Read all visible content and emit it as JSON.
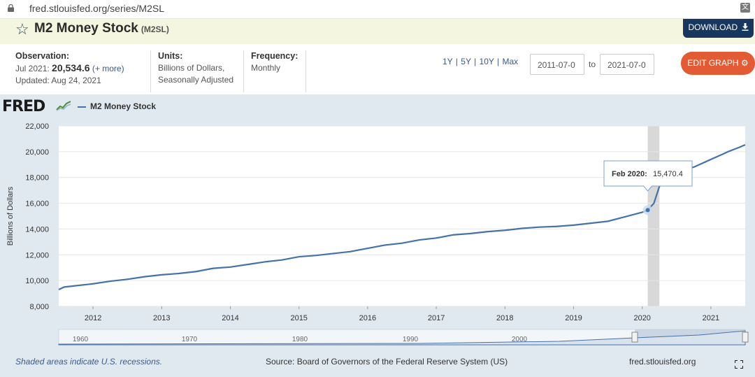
{
  "browser": {
    "url": "fred.stlouisfed.org/series/M2SL"
  },
  "header": {
    "title": "M2 Money Stock",
    "series_id": "(M2SL)",
    "download_label": "DOWNLOAD"
  },
  "observation": {
    "label": "Observation:",
    "period": "Jul 2021:",
    "value": "20,534.6",
    "more": "(+ more)",
    "updated": "Updated: Aug 24, 2021"
  },
  "units": {
    "label": "Units:",
    "line1": "Billions of Dollars,",
    "line2": "Seasonally Adjusted"
  },
  "frequency": {
    "label": "Frequency:",
    "value": "Monthly"
  },
  "ranges": [
    "1Y",
    "5Y",
    "10Y",
    "Max"
  ],
  "date_from": "2011-07-0",
  "date_to": "2021-07-0",
  "to_label": "to",
  "edit_label": "EDIT GRAPH",
  "logo": "FRED",
  "legend_label": "M2 Money Stock",
  "footer": {
    "recessions": "Shaded areas indicate U.S. recessions.",
    "source": "Source: Board of Governors of the Federal Reserve System (US)",
    "site": "fred.stlouisfed.org"
  },
  "colors": {
    "series": "#4572a7",
    "recession": "#d8d8d8",
    "edit": "#e35b34",
    "download": "#17375e"
  },
  "chart_data": {
    "type": "line",
    "ylabel": "Billions of Dollars",
    "ylim": [
      8000,
      22000
    ],
    "yticks": [
      "8,000",
      "10,000",
      "12,000",
      "14,000",
      "16,000",
      "18,000",
      "20,000",
      "22,000"
    ],
    "xlim": [
      2011.5,
      2021.5
    ],
    "xticks": [
      "2012",
      "2013",
      "2014",
      "2015",
      "2016",
      "2017",
      "2018",
      "2019",
      "2020",
      "2021"
    ],
    "recession": [
      2020.08,
      2020.25
    ],
    "tooltip": {
      "label": "Feb 2020:",
      "value": "15,470.4",
      "x": 2020.08,
      "y": 15470.4
    },
    "series": [
      {
        "name": "M2 Money Stock",
        "x": [
          2011.5,
          2011.58,
          2011.75,
          2012.0,
          2012.25,
          2012.5,
          2012.75,
          2013.0,
          2013.25,
          2013.5,
          2013.75,
          2014.0,
          2014.25,
          2014.5,
          2014.75,
          2015.0,
          2015.25,
          2015.5,
          2015.75,
          2016.0,
          2016.25,
          2016.5,
          2016.75,
          2017.0,
          2017.25,
          2017.5,
          2017.75,
          2018.0,
          2018.25,
          2018.5,
          2018.75,
          2019.0,
          2019.25,
          2019.5,
          2019.75,
          2020.0,
          2020.08,
          2020.17,
          2020.25,
          2020.33,
          2020.42,
          2020.5,
          2020.75,
          2021.0,
          2021.17,
          2021.25,
          2021.42,
          2021.5
        ],
        "values": [
          9300,
          9500,
          9600,
          9750,
          9950,
          10100,
          10300,
          10450,
          10550,
          10700,
          10950,
          11050,
          11250,
          11450,
          11600,
          11850,
          11950,
          12100,
          12250,
          12500,
          12750,
          12900,
          13150,
          13300,
          13550,
          13650,
          13800,
          13900,
          14050,
          14150,
          14200,
          14300,
          14450,
          14600,
          14950,
          15300,
          15470.4,
          16000,
          17300,
          18000,
          18300,
          18500,
          18800,
          19400,
          19800,
          20000,
          20350,
          20534.6
        ]
      }
    ],
    "navigator_ticks": [
      "1960",
      "1970",
      "1980",
      "1990",
      "2000"
    ]
  }
}
